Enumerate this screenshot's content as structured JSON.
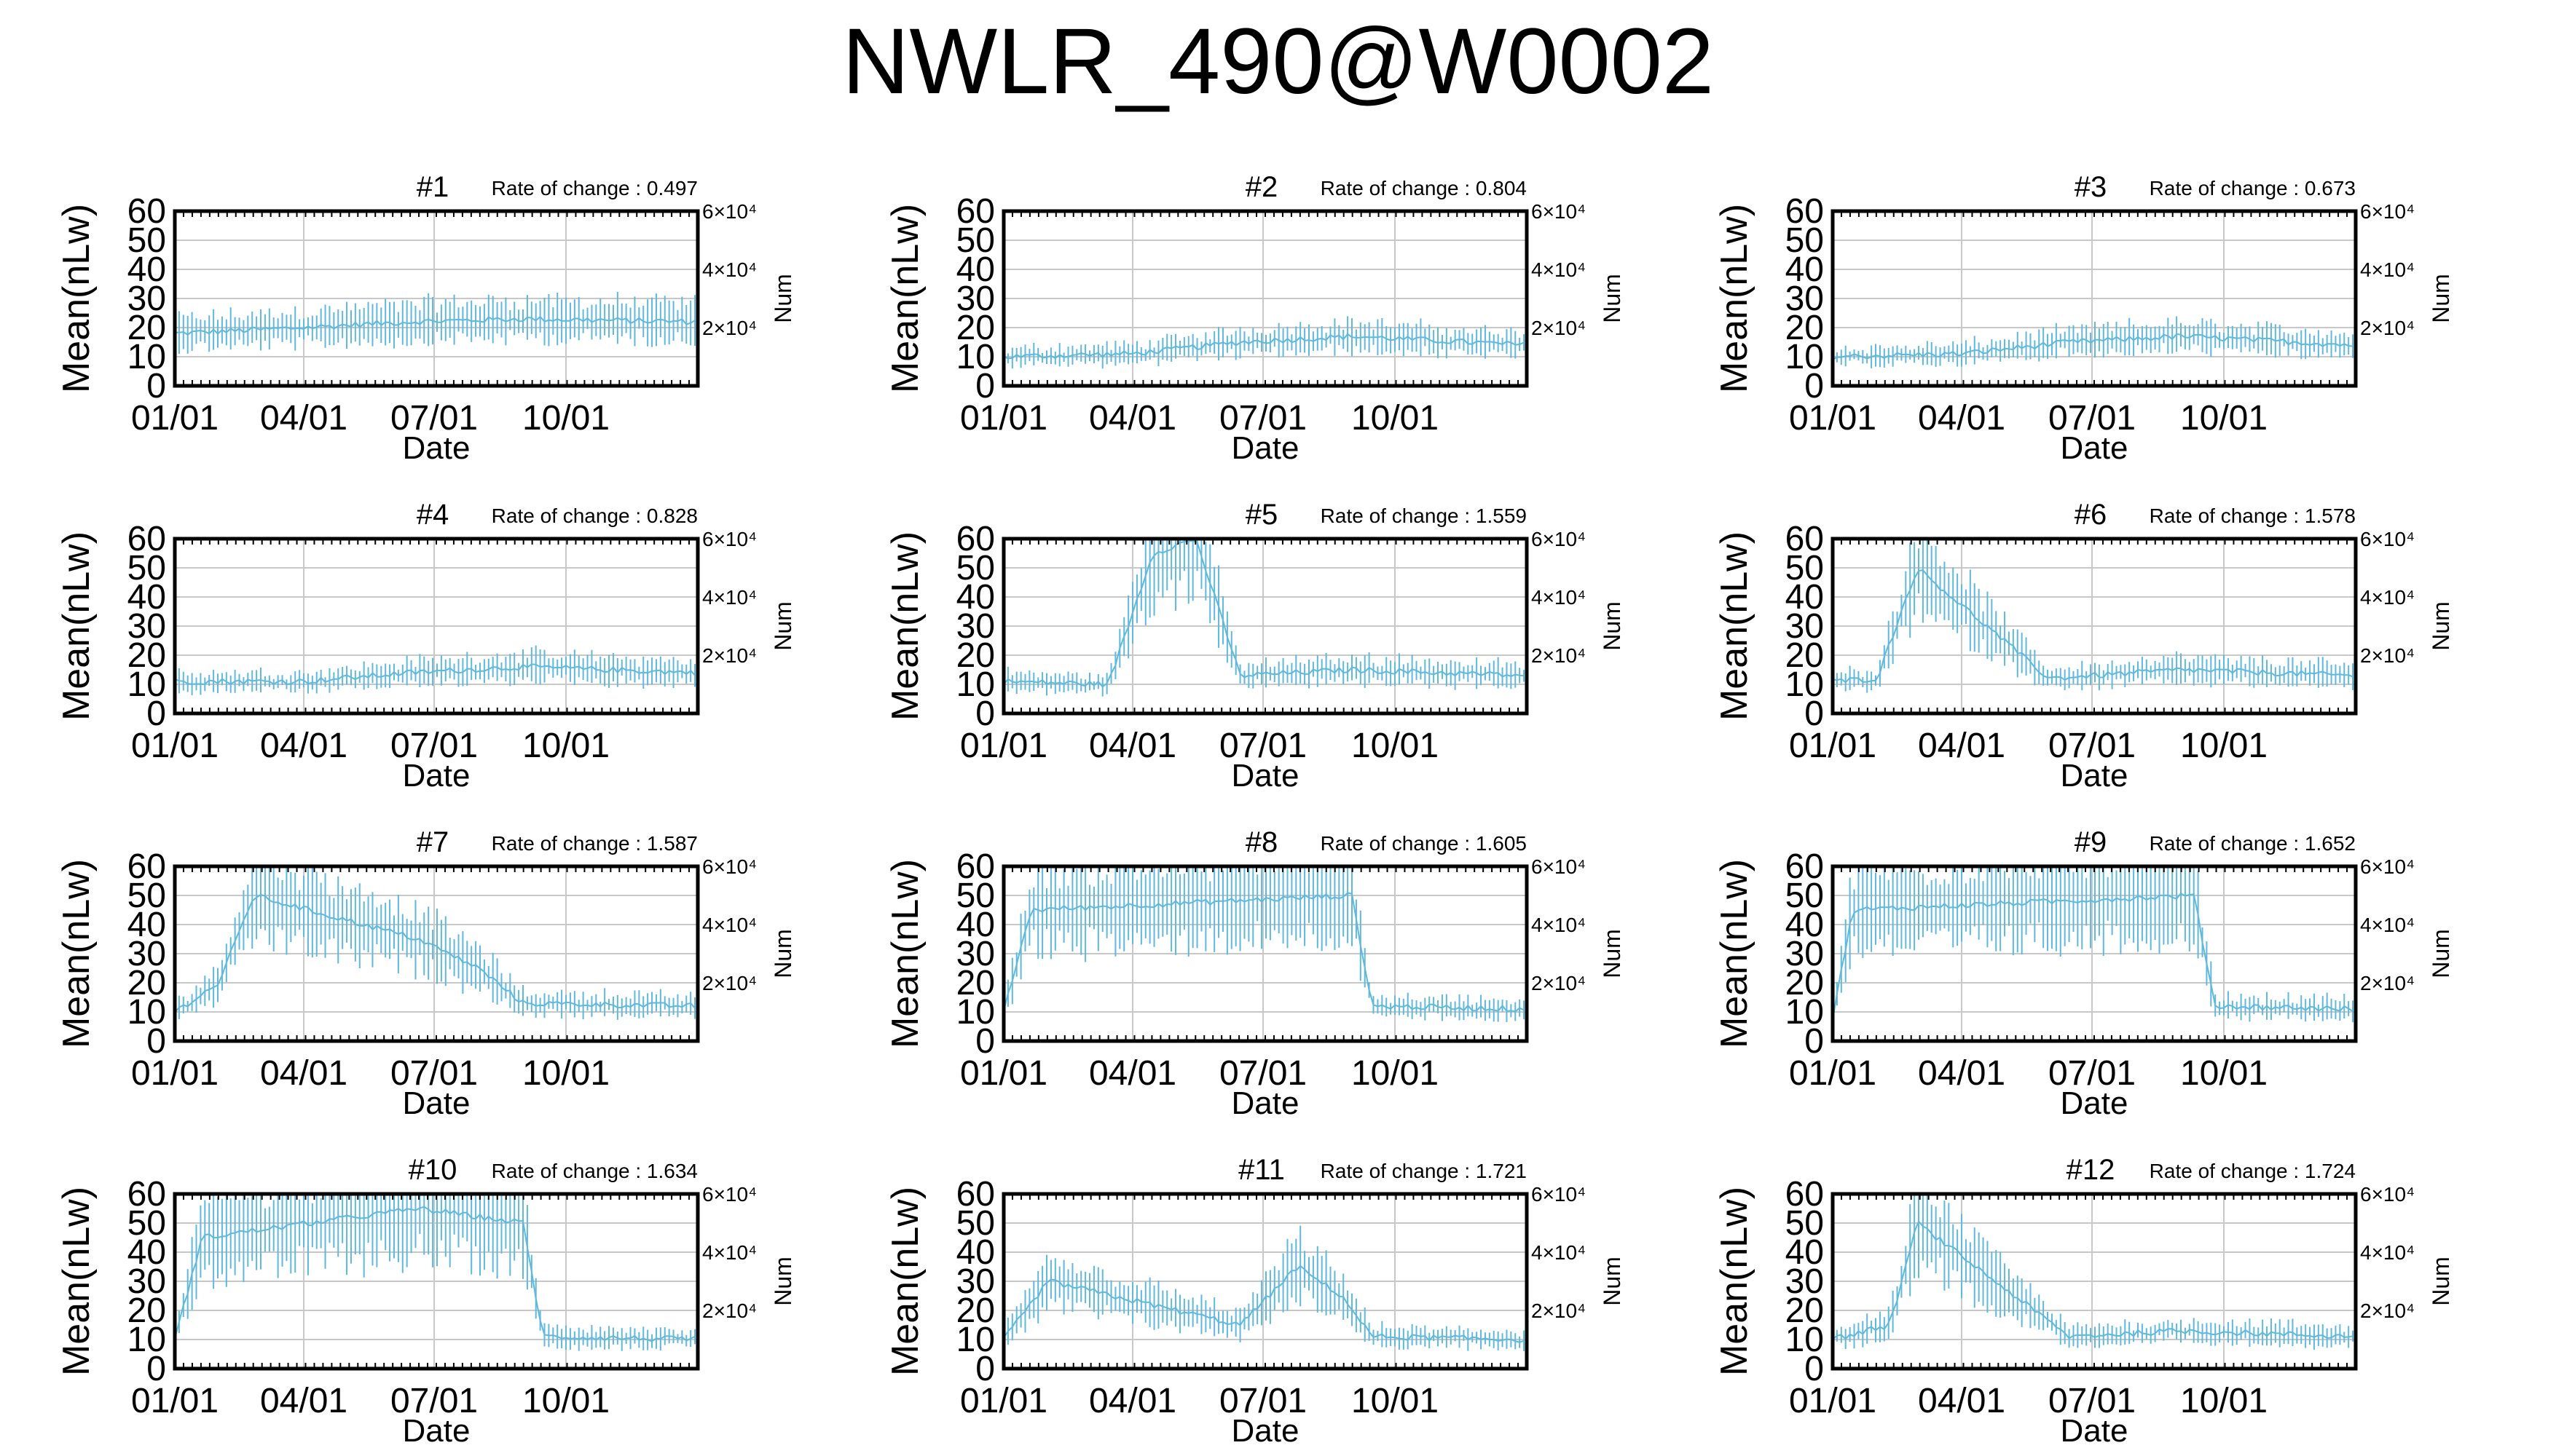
{
  "page": {
    "title": "NWLR_490@W0002"
  },
  "chart_data": [
    {
      "type": "line",
      "title": "#1",
      "annotation": "Rate of change : 0.497",
      "xlabel": "Date",
      "ylabel": "Mean(nLw)",
      "y2label": "Num",
      "ylim": [
        0,
        60
      ],
      "y2ticks": [
        "2×10⁴",
        "4×10⁴",
        "6×10⁴"
      ],
      "yticks": [
        0,
        10,
        20,
        30,
        40,
        50,
        60
      ],
      "xticks": [
        "01/01",
        "04/01",
        "07/01",
        "10/01"
      ],
      "grid": true,
      "series": [
        {
          "x": [
            "01/01",
            "04/01",
            "06/15",
            "09/01",
            "12/31"
          ],
          "values": [
            18,
            20,
            22,
            23,
            22
          ]
        }
      ]
    },
    {
      "type": "line",
      "title": "#2",
      "annotation": "Rate of change : 0.804",
      "xlabel": "Date",
      "ylabel": "Mean(nLw)",
      "y2label": "Num",
      "ylim": [
        0,
        60
      ],
      "y2ticks": [
        "2×10⁴",
        "4×10⁴",
        "6×10⁴"
      ],
      "yticks": [
        0,
        10,
        20,
        30,
        40,
        50,
        60
      ],
      "xticks": [
        "01/01",
        "04/01",
        "07/01",
        "10/01"
      ],
      "grid": true,
      "series": [
        {
          "x": [
            "01/01",
            "04/01",
            "06/15",
            "09/01",
            "12/31"
          ],
          "values": [
            10,
            11,
            15,
            17,
            14
          ]
        }
      ]
    },
    {
      "type": "line",
      "title": "#3",
      "annotation": "Rate of change : 0.673",
      "xlabel": "Date",
      "ylabel": "Mean(nLw)",
      "y2label": "Num",
      "ylim": [
        0,
        60
      ],
      "y2ticks": [
        "2×10⁴",
        "4×10⁴",
        "6×10⁴"
      ],
      "yticks": [
        0,
        10,
        20,
        30,
        40,
        50,
        60
      ],
      "xticks": [
        "01/01",
        "04/01",
        "07/01",
        "10/01"
      ],
      "grid": true,
      "series": [
        {
          "x": [
            "01/01",
            "04/01",
            "06/15",
            "09/01",
            "12/31"
          ],
          "values": [
            10,
            11,
            15,
            17,
            14
          ]
        }
      ]
    },
    {
      "type": "line",
      "title": "#4",
      "annotation": "Rate of change : 0.828",
      "xlabel": "Date",
      "ylabel": "Mean(nLw)",
      "y2label": "Num",
      "ylim": [
        0,
        60
      ],
      "y2ticks": [
        "2×10⁴",
        "4×10⁴",
        "6×10⁴"
      ],
      "yticks": [
        0,
        10,
        20,
        30,
        40,
        50,
        60
      ],
      "xticks": [
        "01/01",
        "04/01",
        "07/01",
        "10/01"
      ],
      "grid": true,
      "series": [
        {
          "x": [
            "01/01",
            "04/01",
            "06/15",
            "09/01",
            "12/31"
          ],
          "values": [
            11,
            11,
            14,
            16,
            14
          ]
        }
      ]
    },
    {
      "type": "line",
      "title": "#5",
      "annotation": "Rate of change : 1.559",
      "xlabel": "Date",
      "ylabel": "Mean(nLw)",
      "y2label": "Num",
      "ylim": [
        0,
        60
      ],
      "y2ticks": [
        "2×10⁴",
        "4×10⁴",
        "6×10⁴"
      ],
      "yticks": [
        0,
        10,
        20,
        30,
        40,
        50,
        60
      ],
      "xticks": [
        "01/01",
        "04/01",
        "07/01",
        "10/01"
      ],
      "grid": true,
      "series": [
        {
          "x": [
            "01/01",
            "03/15",
            "04/15",
            "05/15",
            "06/15",
            "09/01",
            "12/31"
          ],
          "values": [
            11,
            10,
            55,
            60,
            13,
            15,
            13
          ]
        }
      ]
    },
    {
      "type": "line",
      "title": "#6",
      "annotation": "Rate of change : 1.578",
      "xlabel": "Date",
      "ylabel": "Mean(nLw)",
      "y2label": "Num",
      "ylim": [
        0,
        60
      ],
      "y2ticks": [
        "2×10⁴",
        "4×10⁴",
        "6×10⁴"
      ],
      "yticks": [
        0,
        10,
        20,
        30,
        40,
        50,
        60
      ],
      "xticks": [
        "01/01",
        "04/01",
        "07/01",
        "10/01"
      ],
      "grid": true,
      "series": [
        {
          "x": [
            "01/01",
            "02/01",
            "03/01",
            "06/01",
            "09/01",
            "12/31"
          ],
          "values": [
            11,
            12,
            50,
            12,
            15,
            13
          ]
        }
      ]
    },
    {
      "type": "line",
      "title": "#7",
      "annotation": "Rate of change : 1.587",
      "xlabel": "Date",
      "ylabel": "Mean(nLw)",
      "y2label": "Num",
      "ylim": [
        0,
        60
      ],
      "y2ticks": [
        "2×10⁴",
        "4×10⁴",
        "6×10⁴"
      ],
      "yticks": [
        0,
        10,
        20,
        30,
        40,
        50,
        60
      ],
      "xticks": [
        "01/01",
        "04/01",
        "07/01",
        "10/01"
      ],
      "grid": true,
      "series": [
        {
          "x": [
            "01/01",
            "02/01",
            "02/25",
            "06/20",
            "08/01",
            "09/01",
            "12/31"
          ],
          "values": [
            10,
            20,
            50,
            35,
            25,
            13,
            12
          ]
        }
      ]
    },
    {
      "type": "line",
      "title": "#8",
      "annotation": "Rate of change : 1.605",
      "xlabel": "Date",
      "ylabel": "Mean(nLw)",
      "y2label": "Num",
      "ylim": [
        0,
        60
      ],
      "y2ticks": [
        "2×10⁴",
        "4×10⁴",
        "6×10⁴"
      ],
      "yticks": [
        0,
        10,
        20,
        30,
        40,
        50,
        60
      ],
      "xticks": [
        "01/01",
        "04/01",
        "07/01",
        "10/01"
      ],
      "grid": true,
      "series": [
        {
          "x": [
            "01/01",
            "01/20",
            "09/01",
            "09/15",
            "12/31"
          ],
          "values": [
            10,
            45,
            50,
            12,
            11
          ]
        }
      ]
    },
    {
      "type": "line",
      "title": "#9",
      "annotation": "Rate of change : 1.652",
      "xlabel": "Date",
      "ylabel": "Mean(nLw)",
      "y2label": "Num",
      "ylim": [
        0,
        60
      ],
      "y2ticks": [
        "2×10⁴",
        "4×10⁴",
        "6×10⁴"
      ],
      "yticks": [
        0,
        10,
        20,
        30,
        40,
        50,
        60
      ],
      "xticks": [
        "01/01",
        "04/01",
        "07/01",
        "10/01"
      ],
      "grid": true,
      "series": [
        {
          "x": [
            "01/01",
            "01/15",
            "09/10",
            "09/25",
            "12/31"
          ],
          "values": [
            8,
            45,
            50,
            12,
            11
          ]
        }
      ]
    },
    {
      "type": "line",
      "title": "#10",
      "annotation": "Rate of change : 1.634",
      "xlabel": "Date",
      "ylabel": "Mean(nLw)",
      "y2label": "Num",
      "ylim": [
        0,
        60
      ],
      "y2ticks": [
        "2×10⁴",
        "4×10⁴",
        "6×10⁴"
      ],
      "yticks": [
        0,
        10,
        20,
        30,
        40,
        50,
        60
      ],
      "xticks": [
        "01/01",
        "04/01",
        "07/01",
        "10/01"
      ],
      "grid": true,
      "series": [
        {
          "x": [
            "01/01",
            "01/20",
            "06/20",
            "09/01",
            "09/15",
            "12/31"
          ],
          "values": [
            10,
            45,
            55,
            50,
            11,
            10
          ]
        }
      ]
    },
    {
      "type": "line",
      "title": "#11",
      "annotation": "Rate of change : 1.721",
      "xlabel": "Date",
      "ylabel": "Mean(nLw)",
      "y2label": "Num",
      "ylim": [
        0,
        60
      ],
      "y2ticks": [
        "2×10⁴",
        "4×10⁴",
        "6×10⁴"
      ],
      "yticks": [
        0,
        10,
        20,
        30,
        40,
        50,
        60
      ],
      "xticks": [
        "01/01",
        "04/01",
        "07/01",
        "10/01"
      ],
      "grid": true,
      "series": [
        {
          "x": [
            "01/01",
            "02/01",
            "06/15",
            "07/25",
            "08/25",
            "09/15",
            "12/31"
          ],
          "values": [
            10,
            30,
            15,
            35,
            25,
            11,
            10
          ]
        }
      ]
    },
    {
      "type": "line",
      "title": "#12",
      "annotation": "Rate of change : 1.724",
      "xlabel": "Date",
      "ylabel": "Mean(nLw)",
      "y2label": "Num",
      "ylim": [
        0,
        60
      ],
      "y2ticks": [
        "2×10⁴",
        "4×10⁴",
        "6×10⁴"
      ],
      "yticks": [
        0,
        10,
        20,
        30,
        40,
        50,
        60
      ],
      "xticks": [
        "01/01",
        "04/01",
        "07/01",
        "10/01"
      ],
      "grid": true,
      "series": [
        {
          "x": [
            "01/01",
            "02/10",
            "03/01",
            "06/15",
            "09/01",
            "12/31"
          ],
          "values": [
            10,
            15,
            50,
            11,
            13,
            11
          ]
        }
      ]
    }
  ]
}
